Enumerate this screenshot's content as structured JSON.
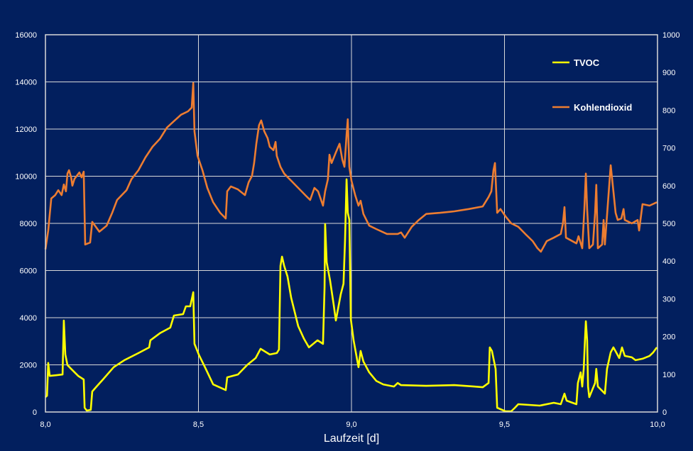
{
  "chart_data": {
    "type": "line",
    "title": "",
    "xlabel": "Laufzeit [d]",
    "ylabel": "",
    "y2label": "",
    "xlim": [
      8.0,
      10.0
    ],
    "ylim": [
      0,
      16000
    ],
    "y2lim": [
      0,
      1000
    ],
    "x_ticks": [
      "8,0",
      "8,5",
      "9,0",
      "9,5",
      "10,0"
    ],
    "x_tick_values": [
      8.0,
      8.5,
      9.0,
      9.5,
      10.0
    ],
    "y_ticks": [
      "0",
      "2000",
      "4000",
      "6000",
      "8000",
      "10000",
      "12000",
      "14000",
      "16000"
    ],
    "y2_ticks": [
      "0",
      "100",
      "200",
      "300",
      "400",
      "500",
      "600",
      "700",
      "800",
      "900",
      "1000"
    ],
    "grid": true,
    "legend_placement": "top-right",
    "background_color": "#021f5e",
    "series": [
      {
        "name": "TVOC",
        "axis": "left",
        "color": "#ffff00",
        "x": [
          8.0,
          8.005,
          8.009,
          8.014,
          8.037,
          8.056,
          8.06,
          8.065,
          8.072,
          8.084,
          8.107,
          8.125,
          8.128,
          8.135,
          8.148,
          8.153,
          8.165,
          8.188,
          8.223,
          8.258,
          8.304,
          8.339,
          8.343,
          8.374,
          8.408,
          8.42,
          8.45,
          8.459,
          8.473,
          8.483,
          8.487,
          8.501,
          8.524,
          8.548,
          8.589,
          8.594,
          8.629,
          8.659,
          8.687,
          8.703,
          8.733,
          8.756,
          8.763,
          8.768,
          8.773,
          8.78,
          8.791,
          8.803,
          8.826,
          8.845,
          8.861,
          8.889,
          8.907,
          8.912,
          8.914,
          8.919,
          8.93,
          8.942,
          8.949,
          8.965,
          8.974,
          8.979,
          8.984,
          8.988,
          8.993,
          8.998,
          9.007,
          9.023,
          9.03,
          9.039,
          9.058,
          9.081,
          9.104,
          9.139,
          9.151,
          9.162,
          9.244,
          9.336,
          9.401,
          9.429,
          9.448,
          9.452,
          9.459,
          9.471,
          9.476,
          9.503,
          9.522,
          9.534,
          9.545,
          9.615,
          9.661,
          9.684,
          9.696,
          9.703,
          9.735,
          9.74,
          9.749,
          9.754,
          9.759,
          9.763,
          9.766,
          9.77,
          9.773,
          9.777,
          9.796,
          9.8,
          9.805,
          9.828,
          9.835,
          9.847,
          9.856,
          9.865,
          9.875,
          9.884,
          9.893,
          9.916,
          9.928,
          9.951,
          9.974,
          9.986,
          9.998
        ],
        "values": [
          630,
          690,
          2080,
          1530,
          1560,
          1590,
          3880,
          2440,
          1990,
          1830,
          1530,
          1380,
          180,
          60,
          90,
          870,
          1050,
          1380,
          1900,
          2200,
          2500,
          2740,
          3040,
          3340,
          3580,
          4090,
          4150,
          4480,
          4480,
          5080,
          2890,
          2440,
          1830,
          1170,
          930,
          1470,
          1590,
          1990,
          2290,
          2680,
          2440,
          2500,
          2650,
          6200,
          6590,
          6200,
          5750,
          4840,
          3640,
          3100,
          2740,
          3040,
          2890,
          5290,
          7970,
          6350,
          5590,
          4540,
          3880,
          4990,
          5440,
          7250,
          9870,
          8450,
          8150,
          3940,
          3040,
          1900,
          2590,
          2140,
          1680,
          1320,
          1170,
          1080,
          1230,
          1140,
          1110,
          1140,
          1080,
          1050,
          1230,
          2740,
          2590,
          1830,
          180,
          30,
          30,
          180,
          330,
          270,
          390,
          330,
          780,
          480,
          330,
          1230,
          1680,
          1080,
          1830,
          3100,
          3850,
          3040,
          1080,
          630,
          1230,
          1830,
          1080,
          780,
          1830,
          2530,
          2740,
          2530,
          2290,
          2740,
          2380,
          2320,
          2200,
          2260,
          2380,
          2530,
          2740
        ]
      },
      {
        "name": "Kohlendioxid",
        "axis": "right",
        "color": "#ed7d31",
        "x": [
          8.0,
          8.009,
          8.019,
          8.032,
          8.042,
          8.053,
          8.06,
          8.067,
          8.072,
          8.077,
          8.084,
          8.088,
          8.095,
          8.111,
          8.118,
          8.125,
          8.13,
          8.146,
          8.153,
          8.176,
          8.2,
          8.218,
          8.234,
          8.265,
          8.281,
          8.304,
          8.327,
          8.35,
          8.374,
          8.397,
          8.42,
          8.443,
          8.466,
          8.478,
          8.483,
          8.487,
          8.497,
          8.513,
          8.529,
          8.548,
          8.571,
          8.589,
          8.594,
          8.606,
          8.629,
          8.652,
          8.664,
          8.675,
          8.682,
          8.689,
          8.698,
          8.705,
          8.715,
          8.726,
          8.733,
          8.745,
          8.752,
          8.756,
          8.768,
          8.78,
          8.803,
          8.826,
          8.849,
          8.865,
          8.879,
          8.891,
          8.907,
          8.914,
          8.923,
          8.928,
          8.935,
          8.949,
          8.961,
          8.97,
          8.977,
          8.984,
          8.988,
          8.993,
          9.0,
          9.012,
          9.023,
          9.03,
          9.039,
          9.058,
          9.081,
          9.116,
          9.151,
          9.162,
          9.174,
          9.197,
          9.22,
          9.244,
          9.29,
          9.336,
          9.383,
          9.429,
          9.448,
          9.457,
          9.464,
          9.469,
          9.476,
          9.487,
          9.503,
          9.522,
          9.545,
          9.568,
          9.592,
          9.608,
          9.619,
          9.638,
          9.661,
          9.684,
          9.691,
          9.696,
          9.701,
          9.735,
          9.742,
          9.754,
          9.761,
          9.766,
          9.77,
          9.777,
          9.789,
          9.796,
          9.8,
          9.805,
          9.819,
          9.824,
          9.828,
          9.84,
          9.847,
          9.856,
          9.863,
          9.87,
          9.882,
          9.889,
          9.893,
          9.916,
          9.935,
          9.94,
          9.951,
          9.974,
          9.998
        ],
        "values": [
          431,
          481,
          566,
          575,
          588,
          575,
          603,
          585,
          632,
          641,
          622,
          600,
          618,
          635,
          622,
          637,
          444,
          449,
          504,
          478,
          494,
          528,
          562,
          588,
          617,
          641,
          675,
          703,
          724,
          754,
          771,
          788,
          797,
          807,
          872,
          744,
          679,
          641,
          594,
          556,
          528,
          513,
          585,
          598,
          590,
          575,
          609,
          626,
          660,
          711,
          760,
          773,
          744,
          726,
          703,
          694,
          716,
          679,
          650,
          632,
          613,
          594,
          575,
          562,
          594,
          585,
          547,
          585,
          617,
          682,
          660,
          688,
          711,
          669,
          650,
          735,
          776,
          650,
          613,
          575,
          547,
          560,
          525,
          494,
          485,
          472,
          472,
          476,
          462,
          491,
          509,
          525,
          528,
          532,
          538,
          545,
          570,
          585,
          641,
          660,
          528,
          538,
          519,
          500,
          491,
          472,
          453,
          434,
          425,
          453,
          462,
          472,
          500,
          543,
          462,
          447,
          466,
          434,
          538,
          632,
          538,
          434,
          444,
          528,
          602,
          434,
          444,
          509,
          444,
          575,
          654,
          585,
          528,
          509,
          513,
          538,
          509,
          500,
          509,
          481,
          551,
          547,
          556
        ]
      }
    ]
  }
}
